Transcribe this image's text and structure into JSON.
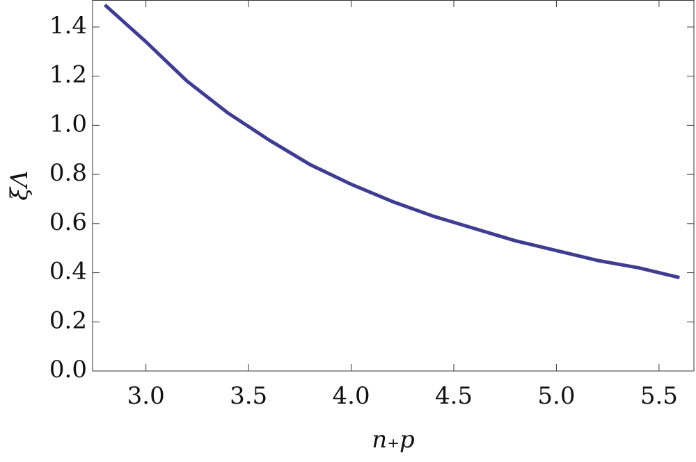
{
  "chart_data": {
    "type": "line",
    "x_label": "n₊p",
    "y_label": "ξΛ",
    "x": [
      2.8,
      3.0,
      3.2,
      3.4,
      3.6,
      3.8,
      4.0,
      4.2,
      4.4,
      4.6,
      4.8,
      5.0,
      5.2,
      5.4,
      5.6
    ],
    "series": [
      {
        "color": "#3f3d92",
        "values": [
          1.49,
          1.34,
          1.18,
          1.05,
          0.94,
          0.84,
          0.76,
          0.69,
          0.63,
          0.58,
          0.53,
          0.49,
          0.45,
          0.42,
          0.38
        ]
      }
    ],
    "xlim": [
      2.74,
      5.67
    ],
    "ylim": [
      0,
      1.51
    ],
    "xticks": [
      {
        "value": 3,
        "label": "3.0"
      },
      {
        "value": 3.5,
        "label": "3.5"
      },
      {
        "value": 4,
        "label": "4.0"
      },
      {
        "value": 4.5,
        "label": "4.5"
      },
      {
        "value": 5,
        "label": "5.0"
      },
      {
        "value": 5.5,
        "label": "5.5"
      }
    ],
    "yticks": [
      {
        "value": 0,
        "label": "0.0"
      },
      {
        "value": 0.2,
        "label": "0.2"
      },
      {
        "value": 0.4,
        "label": "0.4"
      },
      {
        "value": 0.6,
        "label": "0.6"
      },
      {
        "value": 0.8,
        "label": "0.8"
      },
      {
        "value": 1,
        "label": "1.0"
      },
      {
        "value": 1.2,
        "label": "1.2"
      },
      {
        "value": 1.4,
        "label": "1.4"
      }
    ]
  }
}
